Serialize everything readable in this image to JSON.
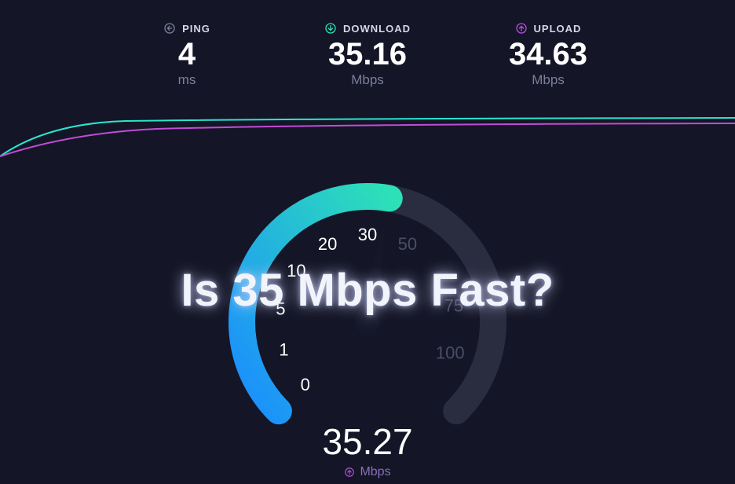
{
  "colors": {
    "background": "#141526",
    "trace_cyan": "#29e6d0",
    "trace_magenta": "#c24cd6",
    "gauge_start": "#1a8cff",
    "gauge_end": "#2de0b8",
    "gauge_track": "#2a2c40",
    "tick_active": "#ffffff",
    "tick_inactive": "#4a4d66",
    "ping_icon": "#7c7f9c",
    "download_icon": "#2de0b8",
    "upload_icon": "#b84ce0"
  },
  "metrics": {
    "ping": {
      "label": "PING",
      "value": "4",
      "unit": "ms"
    },
    "download": {
      "label": "DOWNLOAD",
      "value": "35.16",
      "unit": "Mbps"
    },
    "upload": {
      "label": "UPLOAD",
      "value": "34.63",
      "unit": "Mbps"
    }
  },
  "gauge": {
    "ticks": [
      {
        "label": "0",
        "angle": 225,
        "active": true
      },
      {
        "label": "1",
        "angle": 198,
        "active": true
      },
      {
        "label": "5",
        "angle": 171,
        "active": true
      },
      {
        "label": "10",
        "angle": 144,
        "active": true
      },
      {
        "label": "20",
        "angle": 117,
        "active": true
      },
      {
        "label": "30",
        "angle": 90,
        "active": true
      },
      {
        "label": "50",
        "angle": 63,
        "active": false
      },
      {
        "label": "75",
        "angle": 11,
        "active": false
      },
      {
        "label": "100",
        "angle": -20,
        "active": false
      }
    ],
    "needle_angle": 80,
    "current_value": "35.27",
    "unit": "Mbps",
    "arc_radius": 160,
    "arc_thickness": 34
  },
  "overlay_question": "Is 35 Mbps Fast?"
}
